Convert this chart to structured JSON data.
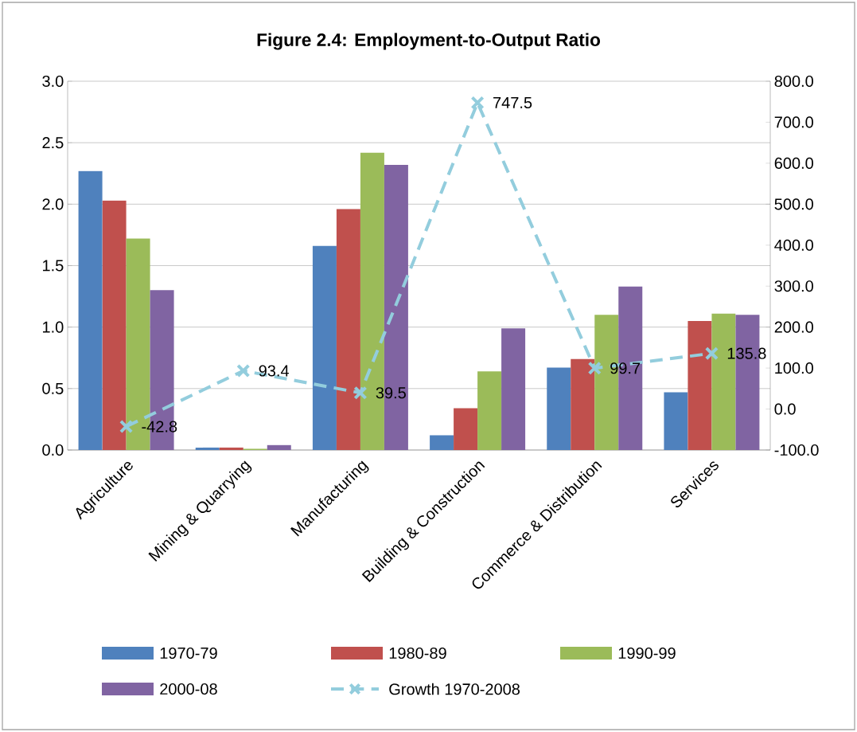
{
  "chart_data": {
    "type": "bar",
    "title": "Figure 2.4: Employment-to-Output Ratio",
    "categories": [
      "Agriculture",
      "Mining & Quarrying",
      "Manufacturing",
      "Building & Construction",
      "Commerce & Distribution",
      "Services"
    ],
    "series": [
      {
        "name": "1970-79",
        "color": "#4f81bd",
        "values": [
          2.27,
          0.02,
          1.66,
          0.12,
          0.67,
          0.47
        ]
      },
      {
        "name": "1980-89",
        "color": "#c0504d",
        "values": [
          2.03,
          0.02,
          1.96,
          0.34,
          0.74,
          1.05
        ]
      },
      {
        "name": "1990-99",
        "color": "#9bbb59",
        "values": [
          1.72,
          0.01,
          2.42,
          0.64,
          1.1,
          1.11
        ]
      },
      {
        "name": "2000-08",
        "color": "#8064a2",
        "values": [
          1.3,
          0.04,
          2.32,
          0.99,
          1.33,
          1.1
        ]
      },
      {
        "name": "Growth 1970-2008",
        "type": "line",
        "axis": "y2",
        "color": "#93cddd",
        "marker": "cross",
        "line_style": "dashed",
        "values": [
          -42.8,
          93.4,
          39.5,
          747.5,
          99.7,
          135.8
        ],
        "value_labels": [
          "-42.8",
          "93.4",
          "39.5",
          "747.5",
          "99.7",
          "135.8"
        ]
      }
    ],
    "ylim": [
      0,
      3
    ],
    "yticks": [
      {
        "value": 0,
        "label": "0.0"
      },
      {
        "value": 0.5,
        "label": "0.5"
      },
      {
        "value": 1,
        "label": "1.0"
      },
      {
        "value": 1.5,
        "label": "1.5"
      },
      {
        "value": 2,
        "label": "2.0"
      },
      {
        "value": 2.5,
        "label": "2.5"
      },
      {
        "value": 3,
        "label": "3.0"
      }
    ],
    "y2lim": [
      -100,
      800
    ],
    "y2ticks": [
      {
        "value": -100,
        "label": "-100.0"
      },
      {
        "value": 0,
        "label": "0.0"
      },
      {
        "value": 100,
        "label": "100.0"
      },
      {
        "value": 200,
        "label": "200.0"
      },
      {
        "value": 300,
        "label": "300.0"
      },
      {
        "value": 400,
        "label": "400.0"
      },
      {
        "value": 500,
        "label": "500.0"
      },
      {
        "value": 600,
        "label": "600.0"
      },
      {
        "value": 700,
        "label": "700.0"
      },
      {
        "value": 800,
        "label": "800.0"
      }
    ],
    "grid": "y",
    "legend": "bottom"
  }
}
